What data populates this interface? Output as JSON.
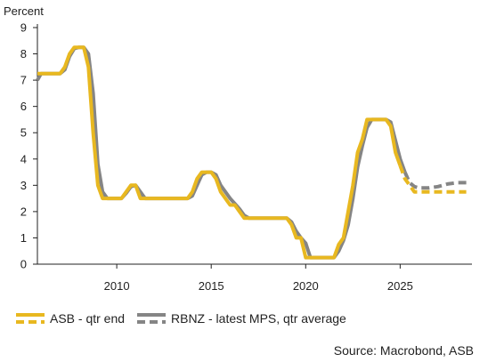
{
  "chart_data": {
    "type": "line",
    "y_unit_label": "Percent",
    "xlim": [
      2005.8,
      2028.8
    ],
    "ylim": [
      0,
      9
    ],
    "y_ticks": [
      0,
      1,
      2,
      3,
      4,
      5,
      6,
      7,
      8,
      9
    ],
    "x_ticks": [
      2010,
      2015,
      2020,
      2025
    ],
    "y_tick_labels": [
      "0",
      "1",
      "2",
      "3",
      "4",
      "5",
      "6",
      "7",
      "8",
      "9"
    ],
    "x_tick_labels": [
      "2010",
      "2015",
      "2020",
      "2025"
    ],
    "grid": false,
    "legend_position": "bottom-left",
    "series": [
      {
        "name": "ASB - qtr end",
        "color": "#E8B820",
        "history": [
          [
            2005.8,
            7.25
          ],
          [
            2006.0,
            7.25
          ],
          [
            2006.5,
            7.25
          ],
          [
            2007.0,
            7.25
          ],
          [
            2007.25,
            7.5
          ],
          [
            2007.5,
            8.0
          ],
          [
            2007.75,
            8.25
          ],
          [
            2008.0,
            8.25
          ],
          [
            2008.25,
            8.25
          ],
          [
            2008.5,
            7.5
          ],
          [
            2008.75,
            5.0
          ],
          [
            2009.0,
            3.0
          ],
          [
            2009.25,
            2.5
          ],
          [
            2009.5,
            2.5
          ],
          [
            2009.75,
            2.5
          ],
          [
            2010.0,
            2.5
          ],
          [
            2010.25,
            2.5
          ],
          [
            2010.5,
            2.75
          ],
          [
            2010.75,
            3.0
          ],
          [
            2011.0,
            3.0
          ],
          [
            2011.25,
            2.5
          ],
          [
            2011.5,
            2.5
          ],
          [
            2012.0,
            2.5
          ],
          [
            2013.0,
            2.5
          ],
          [
            2013.75,
            2.5
          ],
          [
            2014.0,
            2.75
          ],
          [
            2014.25,
            3.25
          ],
          [
            2014.5,
            3.5
          ],
          [
            2014.75,
            3.5
          ],
          [
            2015.0,
            3.5
          ],
          [
            2015.25,
            3.25
          ],
          [
            2015.5,
            2.75
          ],
          [
            2015.75,
            2.5
          ],
          [
            2016.0,
            2.25
          ],
          [
            2016.25,
            2.25
          ],
          [
            2016.5,
            2.0
          ],
          [
            2016.75,
            1.75
          ],
          [
            2017.0,
            1.75
          ],
          [
            2018.0,
            1.75
          ],
          [
            2019.0,
            1.75
          ],
          [
            2019.25,
            1.5
          ],
          [
            2019.5,
            1.0
          ],
          [
            2019.75,
            1.0
          ],
          [
            2020.0,
            0.25
          ],
          [
            2020.5,
            0.25
          ],
          [
            2021.0,
            0.25
          ],
          [
            2021.5,
            0.25
          ],
          [
            2021.75,
            0.75
          ],
          [
            2022.0,
            1.0
          ],
          [
            2022.25,
            2.0
          ],
          [
            2022.5,
            3.0
          ],
          [
            2022.75,
            4.25
          ],
          [
            2023.0,
            4.75
          ],
          [
            2023.25,
            5.5
          ],
          [
            2023.5,
            5.5
          ],
          [
            2023.75,
            5.5
          ],
          [
            2024.0,
            5.5
          ],
          [
            2024.25,
            5.5
          ],
          [
            2024.5,
            5.25
          ],
          [
            2024.75,
            4.25
          ],
          [
            2025.0,
            3.75
          ]
        ],
        "projection": [
          [
            2025.0,
            3.75
          ],
          [
            2025.25,
            3.25
          ],
          [
            2025.5,
            3.0
          ],
          [
            2025.75,
            2.75
          ],
          [
            2026.0,
            2.75
          ],
          [
            2026.5,
            2.75
          ],
          [
            2027.0,
            2.75
          ],
          [
            2027.5,
            2.75
          ],
          [
            2028.0,
            2.75
          ],
          [
            2028.5,
            2.75
          ]
        ]
      },
      {
        "name": "RBNZ - latest MPS, qtr average",
        "color": "#858585",
        "history": [
          [
            2005.8,
            7.0
          ],
          [
            2006.0,
            7.25
          ],
          [
            2006.5,
            7.25
          ],
          [
            2007.0,
            7.25
          ],
          [
            2007.25,
            7.4
          ],
          [
            2007.5,
            7.9
          ],
          [
            2007.75,
            8.2
          ],
          [
            2008.0,
            8.25
          ],
          [
            2008.25,
            8.25
          ],
          [
            2008.5,
            8.0
          ],
          [
            2008.75,
            6.5
          ],
          [
            2009.0,
            3.8
          ],
          [
            2009.25,
            2.75
          ],
          [
            2009.5,
            2.5
          ],
          [
            2009.75,
            2.5
          ],
          [
            2010.0,
            2.5
          ],
          [
            2010.25,
            2.5
          ],
          [
            2010.5,
            2.7
          ],
          [
            2010.75,
            2.95
          ],
          [
            2011.0,
            3.0
          ],
          [
            2011.25,
            2.75
          ],
          [
            2011.5,
            2.5
          ],
          [
            2012.0,
            2.5
          ],
          [
            2013.0,
            2.5
          ],
          [
            2013.75,
            2.5
          ],
          [
            2014.0,
            2.6
          ],
          [
            2014.25,
            3.0
          ],
          [
            2014.5,
            3.4
          ],
          [
            2014.75,
            3.5
          ],
          [
            2015.0,
            3.5
          ],
          [
            2015.25,
            3.4
          ],
          [
            2015.5,
            3.0
          ],
          [
            2015.75,
            2.75
          ],
          [
            2016.0,
            2.5
          ],
          [
            2016.25,
            2.3
          ],
          [
            2016.5,
            2.1
          ],
          [
            2016.75,
            1.85
          ],
          [
            2017.0,
            1.75
          ],
          [
            2018.0,
            1.75
          ],
          [
            2019.0,
            1.75
          ],
          [
            2019.25,
            1.6
          ],
          [
            2019.5,
            1.25
          ],
          [
            2019.75,
            1.0
          ],
          [
            2020.0,
            0.8
          ],
          [
            2020.25,
            0.25
          ],
          [
            2020.5,
            0.25
          ],
          [
            2021.0,
            0.25
          ],
          [
            2021.5,
            0.25
          ],
          [
            2021.75,
            0.5
          ],
          [
            2022.0,
            0.9
          ],
          [
            2022.25,
            1.5
          ],
          [
            2022.5,
            2.5
          ],
          [
            2022.75,
            3.7
          ],
          [
            2023.0,
            4.5
          ],
          [
            2023.25,
            5.2
          ],
          [
            2023.5,
            5.5
          ],
          [
            2023.75,
            5.5
          ],
          [
            2024.0,
            5.5
          ],
          [
            2024.25,
            5.5
          ],
          [
            2024.5,
            5.4
          ],
          [
            2024.75,
            4.7
          ],
          [
            2025.0,
            4.0
          ],
          [
            2025.25,
            3.5
          ]
        ],
        "projection": [
          [
            2025.25,
            3.5
          ],
          [
            2025.5,
            3.1
          ],
          [
            2025.75,
            2.95
          ],
          [
            2026.0,
            2.9
          ],
          [
            2026.5,
            2.9
          ],
          [
            2027.0,
            2.95
          ],
          [
            2027.5,
            3.05
          ],
          [
            2028.0,
            3.1
          ],
          [
            2028.5,
            3.1
          ]
        ]
      }
    ],
    "source": "Source: Macrobond, ASB"
  }
}
